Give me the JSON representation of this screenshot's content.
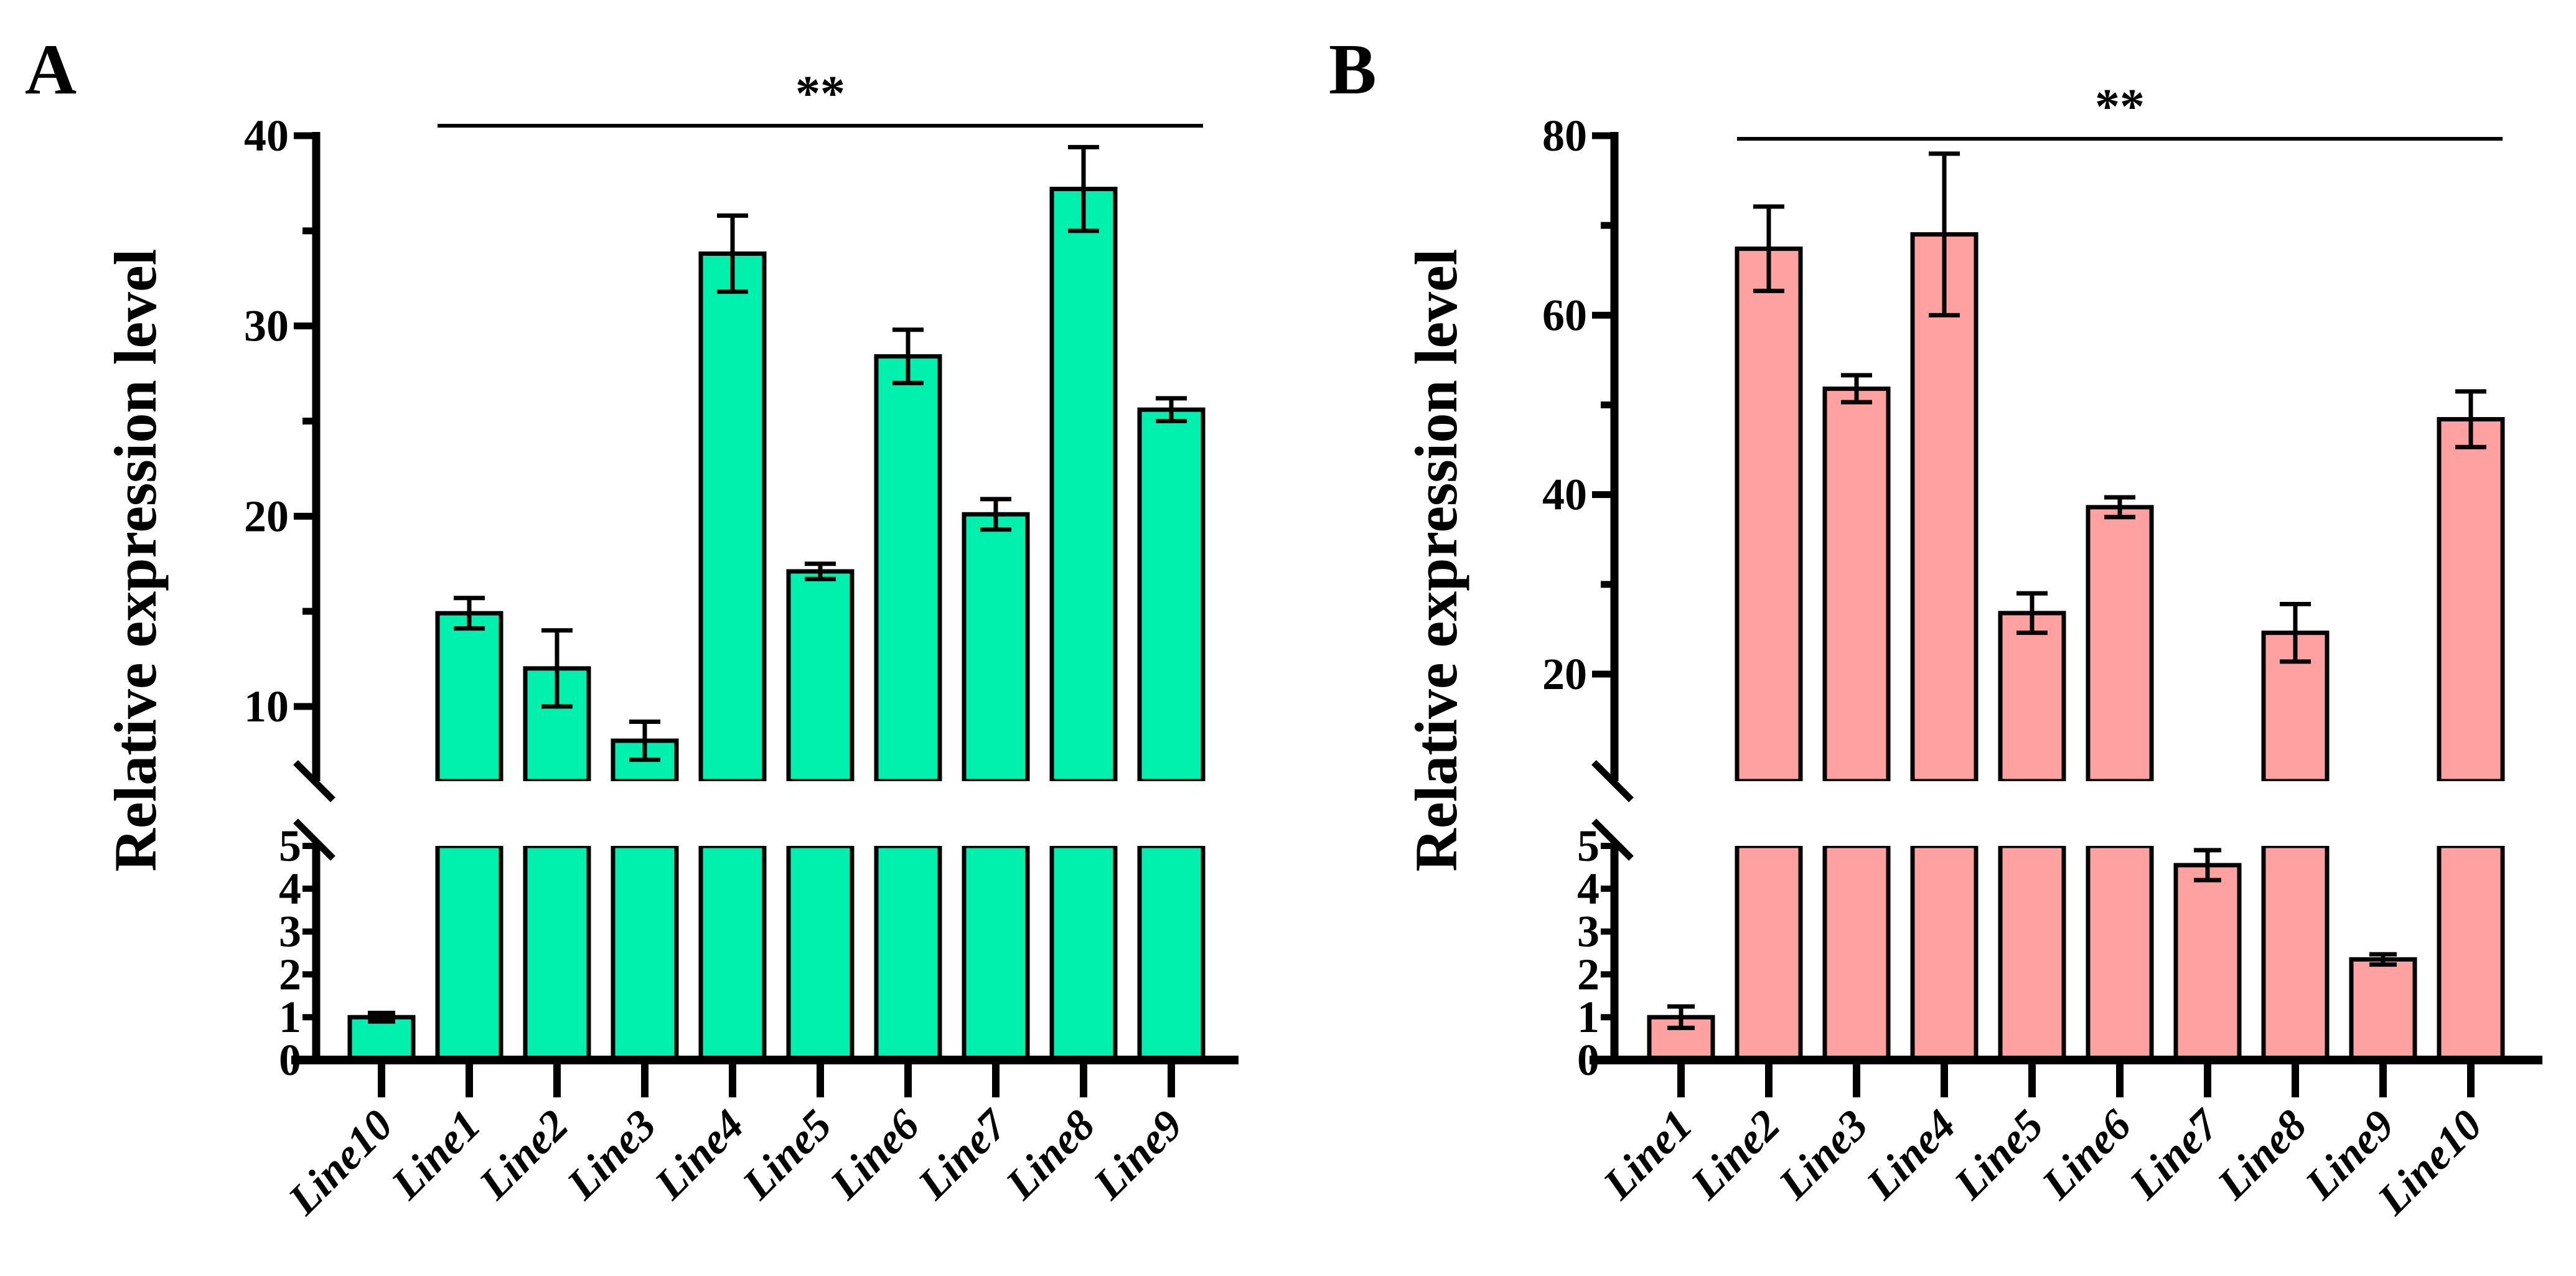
{
  "chart_data": [
    {
      "type": "bar",
      "panel_label": "A",
      "title": "",
      "ylabel": "Relative expression level",
      "xlabel": "",
      "categories": [
        "Line10",
        "Line1",
        "Line2",
        "Line3",
        "Line4",
        "Line5",
        "Line6",
        "Line7",
        "Line8",
        "Line9"
      ],
      "values": [
        1.0,
        14.9,
        12.0,
        8.2,
        33.8,
        17.1,
        28.4,
        20.1,
        37.2,
        25.6
      ],
      "errors": [
        0.1,
        0.8,
        2.0,
        1.0,
        2.0,
        0.4,
        1.4,
        0.8,
        2.2,
        0.6
      ],
      "color": "#00F0AE",
      "y_axis_break": {
        "lower_range": [
          0,
          5
        ],
        "upper_range": [
          6,
          40
        ]
      },
      "yticks_lower": [
        "0",
        "1",
        "2",
        "3",
        "4",
        "5"
      ],
      "yticks_upper": [
        "10",
        "20",
        "30",
        "40"
      ],
      "yticks_upper_values": [
        10,
        20,
        30,
        40
      ],
      "minor_ticks_upper": [
        15,
        25,
        35
      ],
      "significance": {
        "label": "**",
        "from": "Line1",
        "to": "Line9"
      }
    },
    {
      "type": "bar",
      "panel_label": "B",
      "title": "",
      "ylabel": "Relative expression level",
      "xlabel": "",
      "categories": [
        "Line1",
        "Line2",
        "Line3",
        "Line4",
        "Line5",
        "Line6",
        "Line7",
        "Line8",
        "Line9",
        "Line10"
      ],
      "values": [
        1.0,
        67.4,
        51.8,
        69.0,
        26.8,
        38.6,
        4.55,
        24.6,
        2.35,
        48.4
      ],
      "errors": [
        0.25,
        4.7,
        1.5,
        9.0,
        2.2,
        1.1,
        0.35,
        3.2,
        0.12,
        3.1
      ],
      "color": "#FFA1A1",
      "y_axis_break": {
        "lower_range": [
          0,
          5
        ],
        "upper_range": [
          8,
          80
        ]
      },
      "yticks_lower": [
        "0",
        "1",
        "2",
        "3",
        "4",
        "5"
      ],
      "yticks_upper": [
        "20",
        "40",
        "60",
        "80"
      ],
      "yticks_upper_values": [
        20,
        40,
        60,
        80
      ],
      "minor_ticks_upper": [
        30,
        50,
        70
      ],
      "significance": {
        "label": "**",
        "from": "Line2",
        "to": "Line10"
      }
    }
  ]
}
